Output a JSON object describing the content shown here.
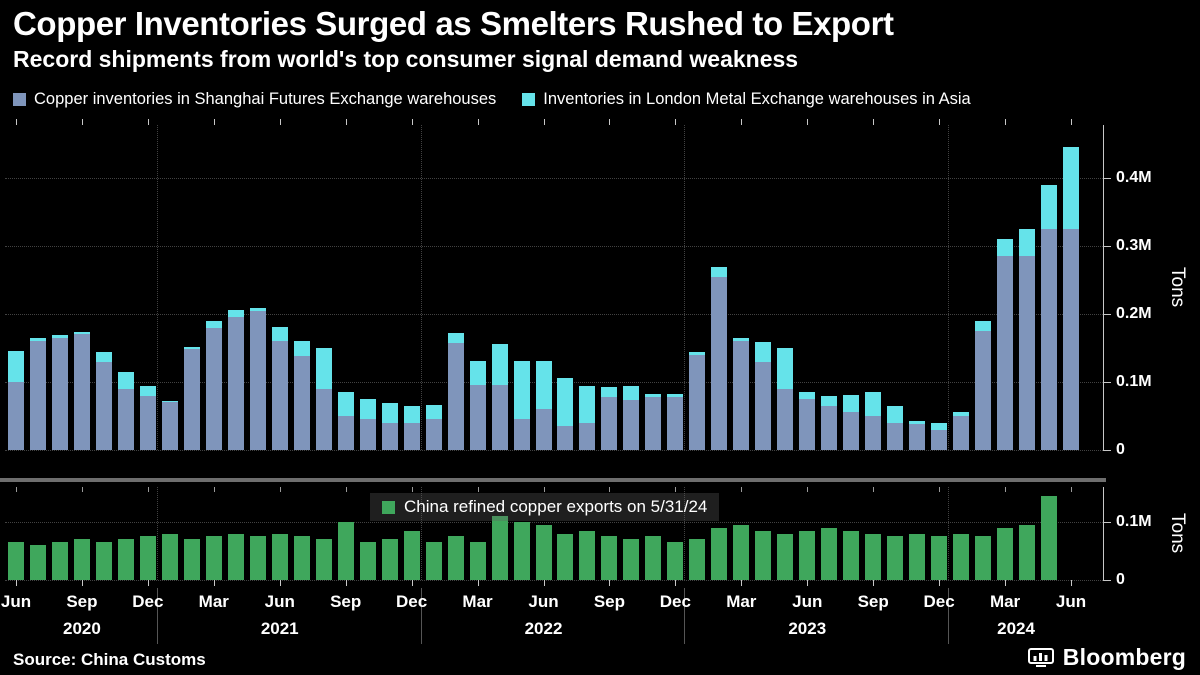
{
  "header": {
    "title": "Copper Inventories Surged as Smelters Rushed to Export",
    "subtitle": "Record shipments from world's top consumer signal demand weakness"
  },
  "footer": {
    "source": "Source: China Customs",
    "brand": "Bloomberg"
  },
  "colors": {
    "background": "#000000",
    "shfe_bar": "#7f95bb",
    "lme_bar": "#65e3ea",
    "exports_bar": "#3fa75c",
    "gridline": "#424242",
    "axis": "#c8c8c8",
    "separator": "#6e6e6e",
    "text": "#ffffff"
  },
  "xaxis": {
    "ticks": [
      {
        "i": 0,
        "label": "Jun"
      },
      {
        "i": 3,
        "label": "Sep"
      },
      {
        "i": 6,
        "label": "Dec"
      },
      {
        "i": 9,
        "label": "Mar"
      },
      {
        "i": 12,
        "label": "Jun"
      },
      {
        "i": 15,
        "label": "Sep"
      },
      {
        "i": 18,
        "label": "Dec"
      },
      {
        "i": 21,
        "label": "Mar"
      },
      {
        "i": 24,
        "label": "Jun"
      },
      {
        "i": 27,
        "label": "Sep"
      },
      {
        "i": 30,
        "label": "Dec"
      },
      {
        "i": 33,
        "label": "Mar"
      },
      {
        "i": 36,
        "label": "Jun"
      },
      {
        "i": 39,
        "label": "Sep"
      },
      {
        "i": 42,
        "label": "Dec"
      },
      {
        "i": 45,
        "label": "Mar"
      },
      {
        "i": 48,
        "label": "Jun"
      }
    ],
    "year_labels": [
      {
        "label": "2020",
        "i": 3
      },
      {
        "label": "2021",
        "i": 12
      },
      {
        "label": "2022",
        "i": 24
      },
      {
        "label": "2023",
        "i": 36
      },
      {
        "label": "2024",
        "i": 45.5
      }
    ],
    "year_boundaries": [
      7,
      19,
      31,
      43
    ]
  },
  "chart_data": [
    {
      "type": "bar",
      "stacked": true,
      "title": "Copper inventories (SHFE + LME Asia)",
      "ylabel": "Tons",
      "ylim": [
        0,
        0.478
      ],
      "grid": true,
      "legend_position": "top",
      "yticks": [
        {
          "v": 0,
          "label": "0"
        },
        {
          "v": 0.1,
          "label": "0.1M"
        },
        {
          "v": 0.2,
          "label": "0.2M"
        },
        {
          "v": 0.3,
          "label": "0.3M"
        },
        {
          "v": 0.4,
          "label": "0.4M"
        }
      ],
      "x": [
        "2020-06",
        "2020-07",
        "2020-08",
        "2020-09",
        "2020-10",
        "2020-11",
        "2020-12",
        "2021-01",
        "2021-02",
        "2021-03",
        "2021-04",
        "2021-05",
        "2021-06",
        "2021-07",
        "2021-08",
        "2021-09",
        "2021-10",
        "2021-11",
        "2021-12",
        "2022-01",
        "2022-02",
        "2022-03",
        "2022-04",
        "2022-05",
        "2022-06",
        "2022-07",
        "2022-08",
        "2022-09",
        "2022-10",
        "2022-11",
        "2022-12",
        "2023-01",
        "2023-02",
        "2023-03",
        "2023-04",
        "2023-05",
        "2023-06",
        "2023-07",
        "2023-08",
        "2023-09",
        "2023-10",
        "2023-11",
        "2023-12",
        "2024-01",
        "2024-02",
        "2024-03",
        "2024-04",
        "2024-05",
        "2024-06"
      ],
      "series": [
        {
          "name": "Copper inventories in Shanghai Futures Exchange warehouses",
          "color": "#7f95bb",
          "values": [
            0.1,
            0.16,
            0.165,
            0.17,
            0.13,
            0.09,
            0.08,
            0.07,
            0.148,
            0.18,
            0.196,
            0.205,
            0.16,
            0.138,
            0.09,
            0.05,
            0.045,
            0.04,
            0.04,
            0.045,
            0.158,
            0.095,
            0.096,
            0.046,
            0.06,
            0.036,
            0.04,
            0.078,
            0.074,
            0.078,
            0.078,
            0.14,
            0.255,
            0.16,
            0.13,
            0.09,
            0.075,
            0.064,
            0.056,
            0.05,
            0.04,
            0.038,
            0.03,
            0.05,
            0.175,
            0.285,
            0.285,
            0.325,
            0.325
          ]
        },
        {
          "name": "Inventories in London Metal Exchange warehouses in Asia",
          "color": "#65e3ea",
          "values": [
            0.045,
            0.005,
            0.005,
            0.003,
            0.015,
            0.025,
            0.015,
            0.002,
            0.003,
            0.01,
            0.01,
            0.005,
            0.02,
            0.022,
            0.06,
            0.035,
            0.03,
            0.03,
            0.025,
            0.02,
            0.015,
            0.035,
            0.06,
            0.085,
            0.07,
            0.07,
            0.055,
            0.015,
            0.02,
            0.004,
            0.004,
            0.005,
            0.015,
            0.005,
            0.03,
            0.06,
            0.01,
            0.015,
            0.025,
            0.035,
            0.025,
            0.004,
            0.01,
            0.006,
            0.015,
            0.025,
            0.04,
            0.065,
            0.12
          ]
        }
      ]
    },
    {
      "type": "bar",
      "stacked": false,
      "title": "China refined copper exports on 5/31/24",
      "ylabel": "Tons",
      "ylim": [
        0,
        0.16
      ],
      "grid": true,
      "legend_position": "top-center",
      "yticks": [
        {
          "v": 0,
          "label": "0"
        },
        {
          "v": 0.1,
          "label": "0.1M"
        }
      ],
      "x": [
        "2020-06",
        "2020-07",
        "2020-08",
        "2020-09",
        "2020-10",
        "2020-11",
        "2020-12",
        "2021-01",
        "2021-02",
        "2021-03",
        "2021-04",
        "2021-05",
        "2021-06",
        "2021-07",
        "2021-08",
        "2021-09",
        "2021-10",
        "2021-11",
        "2021-12",
        "2022-01",
        "2022-02",
        "2022-03",
        "2022-04",
        "2022-05",
        "2022-06",
        "2022-07",
        "2022-08",
        "2022-09",
        "2022-10",
        "2022-11",
        "2022-12",
        "2023-01",
        "2023-02",
        "2023-03",
        "2023-04",
        "2023-05",
        "2023-06",
        "2023-07",
        "2023-08",
        "2023-09",
        "2023-10",
        "2023-11",
        "2023-12",
        "2024-01",
        "2024-02",
        "2024-03",
        "2024-04",
        "2024-05"
      ],
      "series": [
        {
          "name": "China refined copper exports",
          "color": "#3fa75c",
          "values": [
            0.065,
            0.06,
            0.065,
            0.07,
            0.065,
            0.07,
            0.075,
            0.08,
            0.07,
            0.075,
            0.08,
            0.075,
            0.08,
            0.075,
            0.07,
            0.1,
            0.065,
            0.07,
            0.085,
            0.065,
            0.075,
            0.065,
            0.11,
            0.1,
            0.095,
            0.08,
            0.085,
            0.075,
            0.07,
            0.075,
            0.065,
            0.07,
            0.09,
            0.095,
            0.085,
            0.08,
            0.085,
            0.09,
            0.085,
            0.08,
            0.075,
            0.08,
            0.075,
            0.08,
            0.075,
            0.09,
            0.095,
            0.145
          ]
        }
      ]
    }
  ]
}
